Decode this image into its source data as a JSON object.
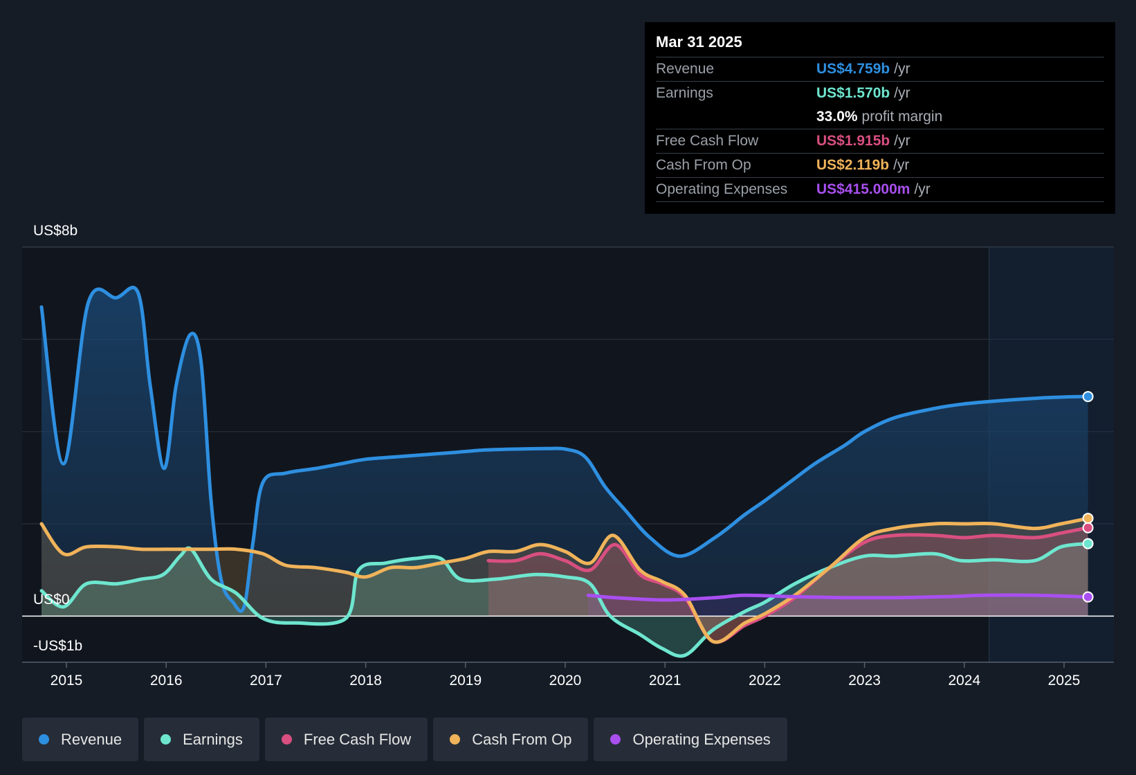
{
  "tooltip": {
    "date": "Mar 31 2025",
    "rows": [
      {
        "label": "Revenue",
        "value": "US$4.759b",
        "unit": "/yr",
        "color": "#2e8fe0"
      },
      {
        "label": "Earnings",
        "value": "US$1.570b",
        "unit": "/yr",
        "color": "#6ee6cf"
      },
      {
        "label": "",
        "value": "33.0%",
        "unit": "profit margin",
        "color": "#ffffff"
      },
      {
        "label": "Free Cash Flow",
        "value": "US$1.915b",
        "unit": "/yr",
        "color": "#d94f80"
      },
      {
        "label": "Cash From Op",
        "value": "US$2.119b",
        "unit": "/yr",
        "color": "#f0b35a"
      },
      {
        "label": "Operating Expenses",
        "value": "US$415.000m",
        "unit": "/yr",
        "color": "#a94ff0"
      }
    ]
  },
  "legend": [
    {
      "label": "Revenue",
      "color": "#2e8fe0"
    },
    {
      "label": "Earnings",
      "color": "#6ee6cf"
    },
    {
      "label": "Free Cash Flow",
      "color": "#d94f80"
    },
    {
      "label": "Cash From Op",
      "color": "#f0b35a"
    },
    {
      "label": "Operating Expenses",
      "color": "#a94ff0"
    }
  ],
  "chart_data": {
    "type": "area",
    "title": "",
    "xlabel": "",
    "ylabel": "",
    "y_tick_labels": [
      "US$8b",
      "US$0",
      "-US$1b"
    ],
    "ylim": [
      -1,
      8
    ],
    "xlim": [
      2014.7,
      2025.25
    ],
    "x_ticks": [
      2015,
      2016,
      2017,
      2018,
      2019,
      2020,
      2021,
      2022,
      2023,
      2024,
      2025
    ],
    "x_tick_labels": [
      "2015",
      "2016",
      "2017",
      "2018",
      "2019",
      "2020",
      "2021",
      "2022",
      "2023",
      "2024",
      "2025"
    ],
    "grid": true,
    "forecast_shade_start": 2024.25,
    "series": [
      {
        "name": "Revenue",
        "color": "#2e8fe0",
        "points": [
          [
            2014.75,
            6.7
          ],
          [
            2014.97,
            3.3
          ],
          [
            2015.22,
            6.8
          ],
          [
            2015.5,
            6.9
          ],
          [
            2015.72,
            7.0
          ],
          [
            2015.84,
            5.0
          ],
          [
            2015.98,
            3.2
          ],
          [
            2016.1,
            5.0
          ],
          [
            2016.24,
            6.1
          ],
          [
            2016.35,
            5.5
          ],
          [
            2016.45,
            2.5
          ],
          [
            2016.55,
            0.8
          ],
          [
            2016.67,
            0.3
          ],
          [
            2016.78,
            0.2
          ],
          [
            2016.87,
            1.6
          ],
          [
            2016.97,
            2.9
          ],
          [
            2017.2,
            3.1
          ],
          [
            2017.5,
            3.2
          ],
          [
            2017.75,
            3.3
          ],
          [
            2018.0,
            3.4
          ],
          [
            2018.3,
            3.45
          ],
          [
            2018.6,
            3.5
          ],
          [
            2018.9,
            3.55
          ],
          [
            2019.2,
            3.6
          ],
          [
            2019.5,
            3.62
          ],
          [
            2019.8,
            3.63
          ],
          [
            2020.0,
            3.62
          ],
          [
            2020.2,
            3.45
          ],
          [
            2020.4,
            2.8
          ],
          [
            2020.6,
            2.3
          ],
          [
            2020.85,
            1.7
          ],
          [
            2021.15,
            1.3
          ],
          [
            2021.5,
            1.7
          ],
          [
            2021.8,
            2.2
          ],
          [
            2022.0,
            2.5
          ],
          [
            2022.25,
            2.9
          ],
          [
            2022.5,
            3.3
          ],
          [
            2022.8,
            3.7
          ],
          [
            2023.0,
            4.0
          ],
          [
            2023.3,
            4.3
          ],
          [
            2023.7,
            4.5
          ],
          [
            2024.0,
            4.6
          ],
          [
            2024.3,
            4.66
          ],
          [
            2024.7,
            4.72
          ],
          [
            2025.0,
            4.75
          ],
          [
            2025.24,
            4.759
          ]
        ]
      },
      {
        "name": "Earnings",
        "color": "#6ee6cf",
        "points": [
          [
            2014.75,
            0.55
          ],
          [
            2014.97,
            0.2
          ],
          [
            2015.2,
            0.7
          ],
          [
            2015.5,
            0.7
          ],
          [
            2015.75,
            0.8
          ],
          [
            2015.97,
            0.9
          ],
          [
            2016.14,
            1.3
          ],
          [
            2016.25,
            1.45
          ],
          [
            2016.45,
            0.8
          ],
          [
            2016.7,
            0.5
          ],
          [
            2016.97,
            -0.05
          ],
          [
            2017.3,
            -0.15
          ],
          [
            2017.8,
            -0.05
          ],
          [
            2017.93,
            1.0
          ],
          [
            2018.2,
            1.15
          ],
          [
            2018.5,
            1.25
          ],
          [
            2018.75,
            1.25
          ],
          [
            2018.95,
            0.8
          ],
          [
            2019.3,
            0.8
          ],
          [
            2019.7,
            0.9
          ],
          [
            2020.0,
            0.85
          ],
          [
            2020.25,
            0.7
          ],
          [
            2020.45,
            0.0
          ],
          [
            2020.75,
            -0.4
          ],
          [
            2020.97,
            -0.7
          ],
          [
            2021.2,
            -0.85
          ],
          [
            2021.48,
            -0.3
          ],
          [
            2021.8,
            0.1
          ],
          [
            2022.0,
            0.3
          ],
          [
            2022.3,
            0.7
          ],
          [
            2022.65,
            1.05
          ],
          [
            2023.0,
            1.3
          ],
          [
            2023.3,
            1.3
          ],
          [
            2023.7,
            1.35
          ],
          [
            2023.97,
            1.2
          ],
          [
            2024.3,
            1.22
          ],
          [
            2024.7,
            1.2
          ],
          [
            2024.97,
            1.5
          ],
          [
            2025.24,
            1.57
          ]
        ]
      },
      {
        "name": "Free Cash Flow",
        "color": "#d94f80",
        "points": [
          [
            2019.23,
            1.2
          ],
          [
            2019.5,
            1.2
          ],
          [
            2019.75,
            1.35
          ],
          [
            2020.0,
            1.2
          ],
          [
            2020.25,
            1.0
          ],
          [
            2020.5,
            1.55
          ],
          [
            2020.75,
            0.9
          ],
          [
            2020.97,
            0.7
          ],
          [
            2021.2,
            0.4
          ],
          [
            2021.48,
            -0.55
          ],
          [
            2021.8,
            -0.2
          ],
          [
            2022.0,
            0.0
          ],
          [
            2022.3,
            0.4
          ],
          [
            2022.65,
            1.05
          ],
          [
            2023.0,
            1.6
          ],
          [
            2023.3,
            1.75
          ],
          [
            2023.7,
            1.75
          ],
          [
            2024.0,
            1.7
          ],
          [
            2024.3,
            1.75
          ],
          [
            2024.7,
            1.7
          ],
          [
            2024.97,
            1.8
          ],
          [
            2025.24,
            1.915
          ]
        ]
      },
      {
        "name": "Cash From Op",
        "color": "#f0b35a",
        "points": [
          [
            2014.75,
            2.0
          ],
          [
            2014.97,
            1.35
          ],
          [
            2015.2,
            1.5
          ],
          [
            2015.5,
            1.5
          ],
          [
            2015.75,
            1.45
          ],
          [
            2016.0,
            1.45
          ],
          [
            2016.45,
            1.45
          ],
          [
            2016.7,
            1.45
          ],
          [
            2016.97,
            1.35
          ],
          [
            2017.2,
            1.1
          ],
          [
            2017.5,
            1.05
          ],
          [
            2017.8,
            0.95
          ],
          [
            2018.0,
            0.85
          ],
          [
            2018.25,
            1.05
          ],
          [
            2018.5,
            1.05
          ],
          [
            2018.75,
            1.15
          ],
          [
            2019.0,
            1.25
          ],
          [
            2019.23,
            1.4
          ],
          [
            2019.5,
            1.4
          ],
          [
            2019.75,
            1.55
          ],
          [
            2020.0,
            1.4
          ],
          [
            2020.25,
            1.15
          ],
          [
            2020.48,
            1.75
          ],
          [
            2020.75,
            1.0
          ],
          [
            2020.97,
            0.75
          ],
          [
            2021.2,
            0.45
          ],
          [
            2021.48,
            -0.55
          ],
          [
            2021.8,
            -0.15
          ],
          [
            2022.0,
            0.05
          ],
          [
            2022.3,
            0.45
          ],
          [
            2022.65,
            1.05
          ],
          [
            2023.0,
            1.7
          ],
          [
            2023.3,
            1.9
          ],
          [
            2023.7,
            2.0
          ],
          [
            2024.0,
            2.0
          ],
          [
            2024.3,
            2.0
          ],
          [
            2024.7,
            1.9
          ],
          [
            2024.97,
            2.0
          ],
          [
            2025.24,
            2.119
          ]
        ]
      },
      {
        "name": "Operating Expenses",
        "color": "#a94ff0",
        "points": [
          [
            2020.23,
            0.45
          ],
          [
            2020.5,
            0.4
          ],
          [
            2021.0,
            0.35
          ],
          [
            2021.5,
            0.4
          ],
          [
            2021.8,
            0.45
          ],
          [
            2022.3,
            0.42
          ],
          [
            2022.8,
            0.4
          ],
          [
            2023.3,
            0.4
          ],
          [
            2023.8,
            0.42
          ],
          [
            2024.2,
            0.45
          ],
          [
            2024.7,
            0.45
          ],
          [
            2025.24,
            0.415
          ]
        ]
      }
    ]
  }
}
